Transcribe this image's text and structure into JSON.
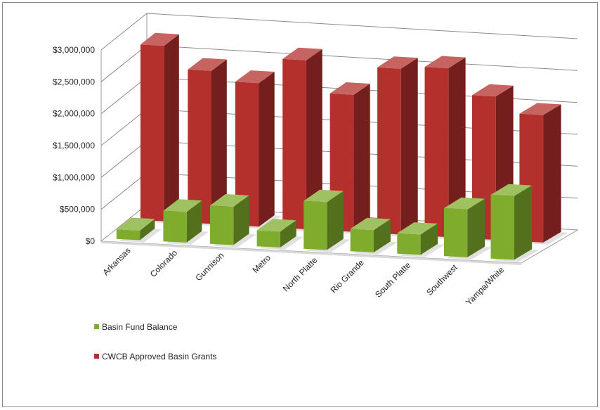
{
  "chart_data": {
    "type": "bar",
    "title": "",
    "xlabel": "",
    "ylabel": "",
    "ylim": [
      0,
      3000000
    ],
    "y_ticks": [
      "$0",
      "$500,000",
      "$1,000,000",
      "$1,500,000",
      "$2,000,000",
      "$2,500,000",
      "$3,000,000"
    ],
    "y_tick_values": [
      0,
      500000,
      1000000,
      1500000,
      2000000,
      2500000,
      3000000
    ],
    "categories": [
      "Arkansas",
      "Colorado",
      "Gunnison",
      "Metro",
      "North Platte",
      "Rio Grande",
      "South Platte",
      "Southwest",
      "Yampa/White"
    ],
    "series": [
      {
        "name": "Basin Fund Balance",
        "color": "#7fac2c",
        "values": [
          150000,
          480000,
          600000,
          250000,
          750000,
          350000,
          320000,
          750000,
          1000000
        ]
      },
      {
        "name": "CWCB Approved Basin Grants",
        "color": "#b3302c",
        "values": [
          2750000,
          2400000,
          2250000,
          2650000,
          2150000,
          2600000,
          2650000,
          2250000,
          2000000
        ]
      }
    ],
    "grid": true,
    "legend_position": "bottom-left",
    "style": "3d-clustered-columns"
  },
  "legend": {
    "items": [
      {
        "label": "Basin Fund Balance",
        "color": "#7fac2c"
      },
      {
        "label": "CWCB Approved Basin Grants",
        "color": "#b3302c"
      }
    ]
  }
}
